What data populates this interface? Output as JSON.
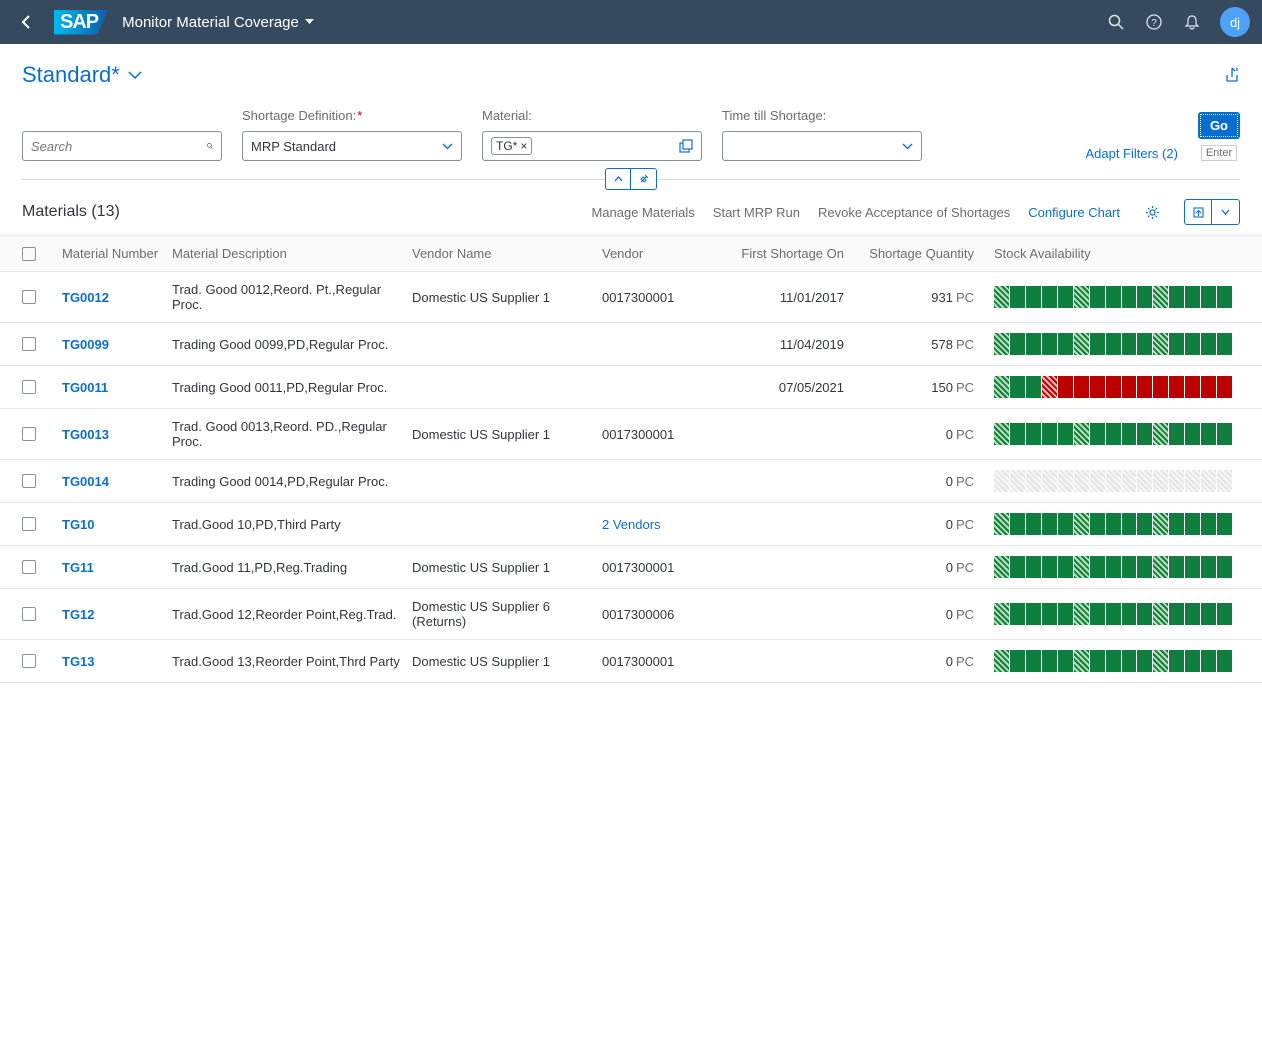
{
  "shell": {
    "app_title": "Monitor Material Coverage",
    "user_initials": "dj"
  },
  "page": {
    "variant_name": "Standard*"
  },
  "filters": {
    "search_placeholder": "Search",
    "shortage_def_label": "Shortage Definition:",
    "shortage_def_value": "MRP Standard",
    "material_label": "Material:",
    "material_token": "TG*",
    "time_label": "Time till Shortage:",
    "adapt_filters": "Adapt Filters (2)",
    "go": "Go",
    "go_hint": "Enter"
  },
  "toolbar": {
    "title": "Materials (13)",
    "manage_materials": "Manage Materials",
    "start_mrp": "Start MRP Run",
    "revoke": "Revoke Acceptance of Shortages",
    "configure_chart": "Configure Chart"
  },
  "columns": {
    "material_number": "Material Number",
    "material_desc": "Material Description",
    "vendor_name": "Vendor Name",
    "vendor": "Vendor",
    "first_shortage": "First Shortage On",
    "shortage_qty": "Shortage Quantity",
    "stock_avail": "Stock Availability"
  },
  "rows": [
    {
      "num": "TG0012",
      "desc": "Trad. Good 0012,Reord. Pt.,Regular Proc.",
      "vname": "Domestic US Supplier 1",
      "vendor": "0017300001",
      "shortage": "11/01/2017",
      "qty": "931",
      "unit": "PC",
      "stock": [
        "hatch-green",
        "green",
        "green",
        "green",
        "green",
        "hatch-green",
        "green",
        "green",
        "green",
        "green",
        "hatch-green",
        "green",
        "green",
        "green",
        "green"
      ]
    },
    {
      "num": "TG0099",
      "desc": "Trading Good 0099,PD,Regular Proc.",
      "vname": "",
      "vendor": "",
      "shortage": "11/04/2019",
      "qty": "578",
      "unit": "PC",
      "stock": [
        "hatch-green",
        "green",
        "green",
        "green",
        "green",
        "hatch-green",
        "green",
        "green",
        "green",
        "green",
        "hatch-green",
        "green",
        "green",
        "green",
        "green"
      ]
    },
    {
      "num": "TG0011",
      "desc": "Trading Good 0011,PD,Regular Proc.",
      "vname": "",
      "vendor": "",
      "shortage": "07/05/2021",
      "qty": "150",
      "unit": "PC",
      "stock": [
        "hatch-green",
        "green",
        "green",
        "hatch-red",
        "red",
        "red",
        "red",
        "red",
        "red",
        "red",
        "red",
        "red",
        "red",
        "red",
        "red"
      ]
    },
    {
      "num": "TG0013",
      "desc": "Trad. Good 0013,Reord. PD.,Regular Proc.",
      "vname": "Domestic US Supplier 1",
      "vendor": "0017300001",
      "shortage": "",
      "qty": "0",
      "unit": "PC",
      "stock": [
        "hatch-green",
        "green",
        "green",
        "green",
        "green",
        "hatch-green",
        "green",
        "green",
        "green",
        "green",
        "hatch-green",
        "green",
        "green",
        "green",
        "green"
      ]
    },
    {
      "num": "TG0014",
      "desc": "Trading Good 0014,PD,Regular Proc.",
      "vname": "",
      "vendor": "",
      "shortage": "",
      "qty": "0",
      "unit": "PC",
      "stock": [
        "grey",
        "grey",
        "grey",
        "grey",
        "grey",
        "grey",
        "grey",
        "grey",
        "grey",
        "grey",
        "grey",
        "grey",
        "grey",
        "grey",
        "grey"
      ]
    },
    {
      "num": "TG10",
      "desc": "Trad.Good 10,PD,Third Party",
      "vname": "",
      "vendor": "2 Vendors",
      "vendor_link": true,
      "shortage": "",
      "qty": "0",
      "unit": "PC",
      "stock": [
        "hatch-green",
        "green",
        "green",
        "green",
        "green",
        "hatch-green",
        "green",
        "green",
        "green",
        "green",
        "hatch-green",
        "green",
        "green",
        "green",
        "green"
      ]
    },
    {
      "num": "TG11",
      "desc": "Trad.Good 11,PD,Reg.Trading",
      "vname": "Domestic US Supplier 1",
      "vendor": "0017300001",
      "shortage": "",
      "qty": "0",
      "unit": "PC",
      "stock": [
        "hatch-green",
        "green",
        "green",
        "green",
        "green",
        "hatch-green",
        "green",
        "green",
        "green",
        "green",
        "hatch-green",
        "green",
        "green",
        "green",
        "green"
      ]
    },
    {
      "num": "TG12",
      "desc": "Trad.Good 12,Reorder Point,Reg.Trad.",
      "vname": "Domestic US Supplier 6 (Returns)",
      "vendor": "0017300006",
      "shortage": "",
      "qty": "0",
      "unit": "PC",
      "stock": [
        "hatch-green",
        "green",
        "green",
        "green",
        "green",
        "hatch-green",
        "green",
        "green",
        "green",
        "green",
        "hatch-green",
        "green",
        "green",
        "green",
        "green"
      ]
    },
    {
      "num": "TG13",
      "desc": "Trad.Good 13,Reorder Point,Thrd Party",
      "vname": "Domestic US Supplier 1",
      "vendor": "0017300001",
      "shortage": "",
      "qty": "0",
      "unit": "PC",
      "stock": [
        "hatch-green",
        "green",
        "green",
        "green",
        "green",
        "hatch-green",
        "green",
        "green",
        "green",
        "green",
        "hatch-green",
        "green",
        "green",
        "green",
        "green"
      ]
    }
  ],
  "colors": {
    "brand": "#0a6ed1",
    "header_bg": "#354a5f",
    "green": "#107e3e",
    "red": "#bb0000"
  }
}
